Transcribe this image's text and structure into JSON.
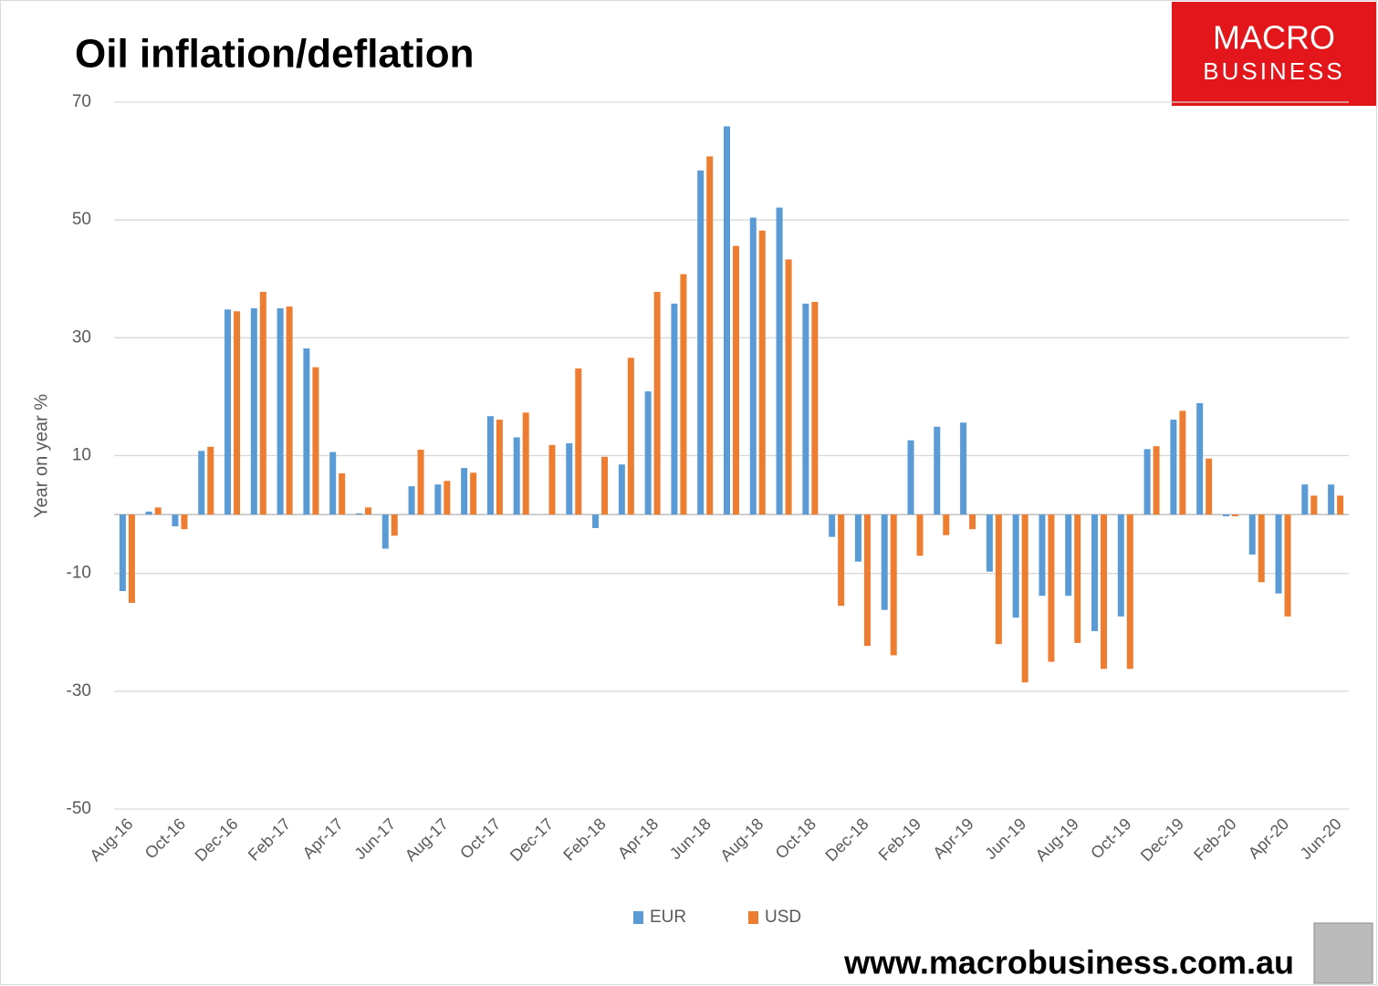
{
  "chart_data": {
    "type": "bar",
    "title": "Oil inflation/deflation",
    "y_label": "Year on year %",
    "logo": {
      "line1": "MACRO",
      "line2": "BUSINESS"
    },
    "footer": "www.macrobusiness.com.au",
    "categories": [
      "Aug-16",
      null,
      "Oct-16",
      null,
      "Dec-16",
      null,
      "Feb-17",
      null,
      "Apr-17",
      null,
      "Jun-17",
      null,
      "Aug-17",
      null,
      "Oct-17",
      null,
      "Dec-17",
      null,
      "Feb-18",
      null,
      "Apr-18",
      null,
      "Jun-18",
      null,
      "Aug-18",
      null,
      "Oct-18",
      null,
      "Dec-18",
      null,
      "Feb-19",
      null,
      "Apr-19",
      null,
      "Jun-19",
      null,
      "Aug-19",
      null,
      "Oct-19",
      null,
      "Dec-19",
      null,
      "Feb-20",
      null,
      "Apr-20",
      null,
      "Jun-20"
    ],
    "series": [
      {
        "name": "EUR",
        "color": "#5b9bd5",
        "values": [
          -13,
          0.5,
          -2,
          10.8,
          34.8,
          35,
          35,
          28.2,
          10.6,
          0.2,
          -5.8,
          4.8,
          5.1,
          7.9,
          16.7,
          13.1,
          0,
          12.1,
          -2.3,
          8.5,
          20.9,
          35.8,
          58.4,
          65.9,
          50.4,
          52.1,
          35.8,
          -3.8,
          -8,
          -16.2,
          12.6,
          14.9,
          15.6,
          -9.7,
          -17.5,
          -13.8,
          -13.8,
          -19.8,
          -17.3,
          11.1,
          16.1,
          18.9,
          -0.3,
          -6.8,
          -13.4,
          5.1,
          5.1
        ]
      },
      {
        "name": "USD",
        "color": "#ed7d31",
        "values": [
          -15,
          1.2,
          -2.5,
          11.5,
          34.5,
          37.8,
          35.3,
          25,
          7,
          1.2,
          -3.6,
          11,
          5.7,
          7.1,
          16.1,
          17.3,
          11.8,
          24.8,
          9.8,
          26.6,
          37.8,
          40.8,
          60.8,
          45.6,
          48.2,
          43.3,
          36.1,
          -15.5,
          -22.3,
          -23.9,
          -7,
          -3.5,
          -2.5,
          -22,
          -28.5,
          -25,
          -21.8,
          -26.2,
          -26.2,
          11.6,
          17.6,
          9.5,
          -0.3,
          -11.5,
          -17.3,
          3.2,
          3.2
        ]
      }
    ],
    "ylim": [
      -50,
      70
    ],
    "yticks": [
      70,
      50,
      30,
      10,
      -10,
      -30,
      -50
    ],
    "grid": true,
    "legend": "bottom"
  }
}
